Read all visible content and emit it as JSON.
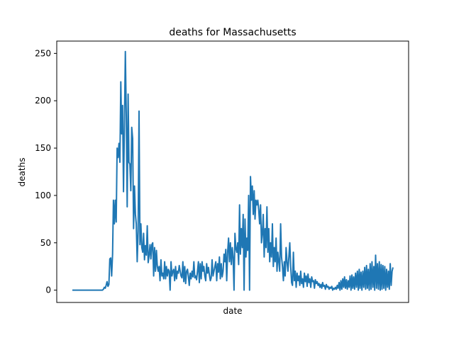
{
  "chart_data": {
    "type": "line",
    "title": "deaths for Massachusetts",
    "xlabel": "date",
    "ylabel": "deaths",
    "ylim": [
      -13,
      263
    ],
    "yticks": [
      0,
      50,
      100,
      150,
      200,
      250
    ],
    "xticks_shown": false,
    "grid": false,
    "legend": "none",
    "color": "#1f77b4",
    "series": [
      {
        "values": [
          0,
          0,
          0,
          0,
          0,
          0,
          0,
          0,
          0,
          0,
          0,
          0,
          0,
          0,
          0,
          0,
          0,
          0,
          0,
          0,
          0,
          0,
          0,
          0,
          0,
          0,
          0,
          0,
          0,
          0,
          0,
          0,
          0,
          0,
          1,
          3,
          2,
          5,
          9,
          4,
          6,
          33,
          34,
          15,
          38,
          95,
          70,
          95,
          72,
          150,
          140,
          155,
          135,
          220,
          165,
          195,
          104,
          175,
          252,
          185,
          88,
          207,
          135,
          133,
          105,
          172,
          160,
          65,
          110,
          80,
          70,
          30,
          62,
          189,
          48,
          70,
          45,
          40,
          60,
          32,
          47,
          37,
          68,
          29,
          37,
          48,
          33,
          48,
          50,
          15,
          45,
          20,
          42,
          25,
          20,
          25,
          10,
          32,
          15,
          18,
          12,
          30,
          12,
          25,
          15,
          22,
          20,
          0,
          30,
          15,
          20,
          22,
          10,
          25,
          12,
          20,
          18,
          26,
          20,
          15,
          13,
          30,
          9,
          25,
          7,
          20,
          22,
          15,
          5,
          18,
          12,
          20,
          14,
          30,
          13,
          15,
          11,
          20,
          30,
          8,
          28,
          12,
          30,
          20,
          25,
          15,
          10,
          28,
          18,
          24,
          16,
          10,
          13,
          32,
          15,
          20,
          25,
          30,
          10,
          28,
          19,
          35,
          12,
          28,
          14,
          20,
          38,
          30,
          43,
          10,
          40,
          55,
          30,
          50,
          27,
          45,
          35,
          0,
          60,
          44,
          40,
          50,
          27,
          90,
          38,
          65,
          45,
          80,
          0,
          75,
          35,
          55,
          42,
          100,
          0,
          120,
          95,
          110,
          80,
          105,
          75,
          95,
          90,
          95,
          85,
          70,
          90,
          50,
          60,
          80,
          35,
          65,
          45,
          88,
          40,
          65,
          30,
          50,
          35,
          70,
          25,
          45,
          30,
          55,
          20,
          40,
          30,
          20,
          70,
          35,
          25,
          10,
          30,
          15,
          45,
          30,
          20,
          35,
          50,
          25,
          8,
          5,
          40,
          10,
          20,
          3,
          18,
          10,
          15,
          5,
          20,
          7,
          12,
          3,
          18,
          9,
          15,
          4,
          17,
          8,
          12,
          3,
          14,
          9,
          10,
          2,
          11,
          7,
          9,
          5,
          7,
          3,
          6,
          2,
          8,
          4,
          5,
          1,
          6,
          3,
          4,
          1,
          3,
          2,
          4,
          0,
          2,
          1,
          3,
          1,
          5,
          2,
          8,
          0,
          10,
          1,
          12,
          3,
          14,
          2,
          11,
          1,
          10,
          3,
          15,
          0,
          16,
          2,
          14,
          1,
          18,
          3,
          20,
          0,
          22,
          2,
          19,
          0,
          20,
          3,
          24,
          1,
          26,
          2,
          22,
          0,
          28,
          1,
          30,
          3,
          25,
          0,
          37,
          2,
          28,
          1,
          30,
          0,
          27,
          1,
          26,
          2,
          25,
          0,
          22,
          3,
          20,
          1,
          28,
          5,
          20,
          24
        ]
      }
    ]
  }
}
